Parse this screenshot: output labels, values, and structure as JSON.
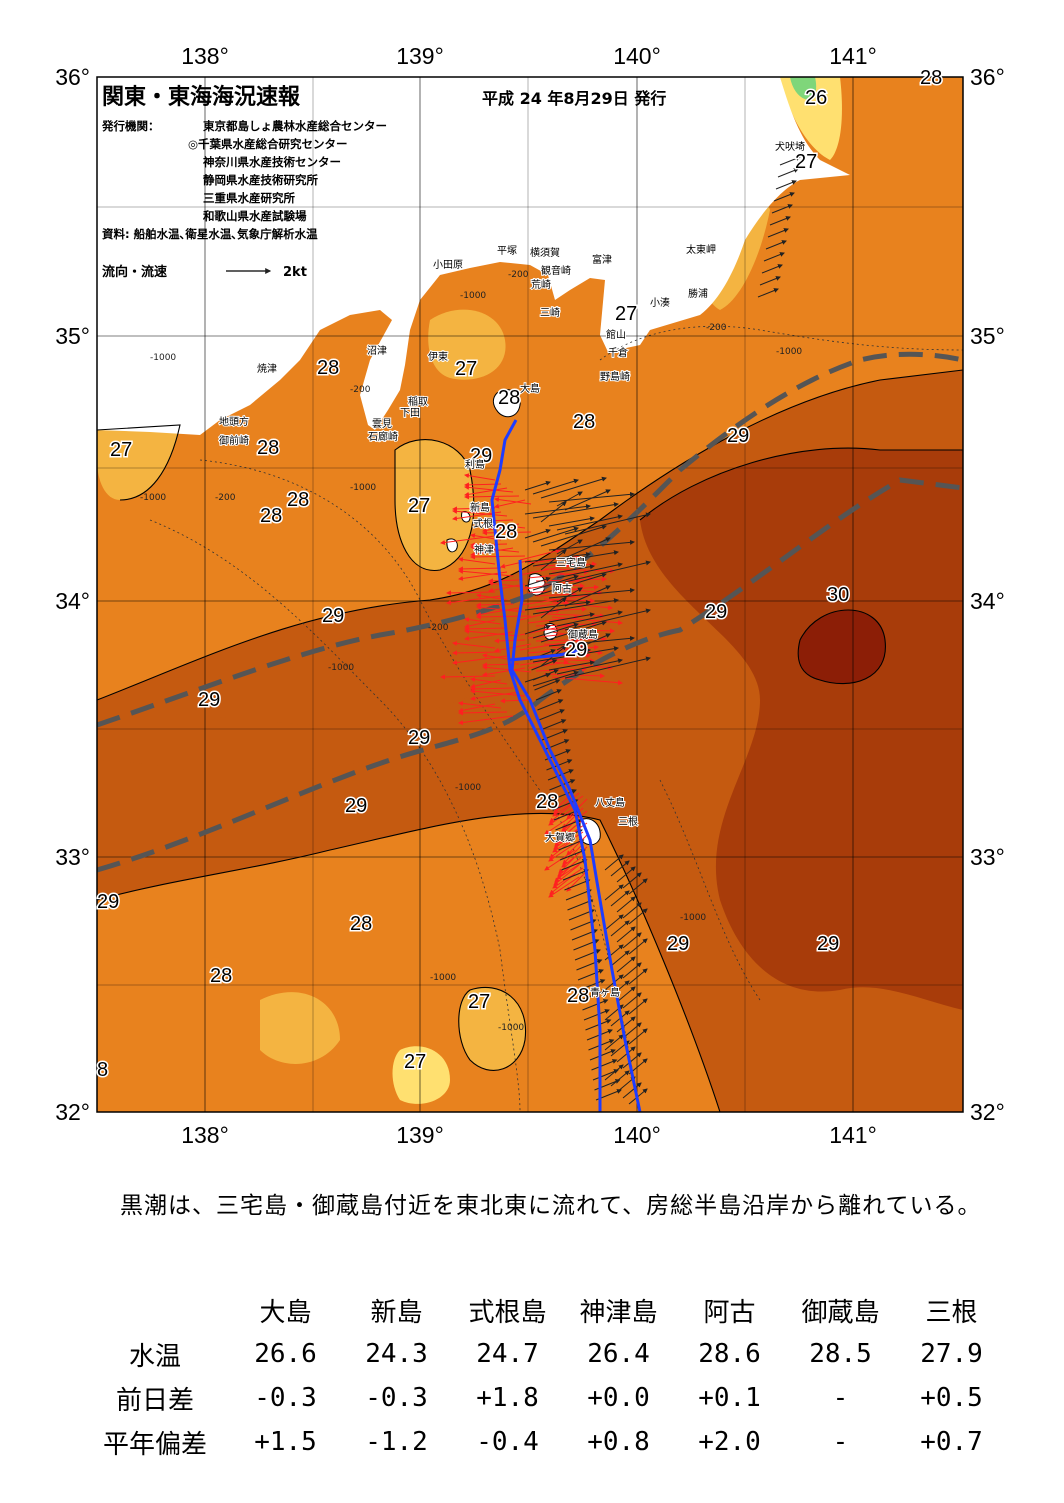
{
  "header": {
    "title": "関東・東海海況速報",
    "issue_date": "平成 24 年8月29日 発行",
    "issuer_label": "発行機関：",
    "issuers": [
      "東京都島しょ農林水産総合センター",
      "◎千葉県水産総合研究センター",
      "神奈川県水産技術センター",
      "静岡県水産技術研究所",
      "三重県水産研究所",
      "和歌山県水産試験場"
    ],
    "source": "資料: 船舶水温､衛星水温､気象庁解析水温",
    "legend_label": "流向・流速",
    "legend_scale": "2kt"
  },
  "axes": {
    "lon_labels": [
      "138°",
      "139°",
      "140°",
      "141°"
    ],
    "lat_labels": [
      "36°",
      "35°",
      "34°",
      "33°",
      "32°"
    ]
  },
  "isotherm_labels": [
    "26",
    "27",
    "27",
    "27",
    "28",
    "28",
    "28",
    "27",
    "28",
    "28",
    "28",
    "27",
    "29",
    "28",
    "29",
    "29",
    "29",
    "29",
    "29",
    "30",
    "29",
    "29",
    "29",
    "28",
    "28",
    "28",
    "27",
    "27",
    "28",
    "28",
    "29",
    "29",
    "8",
    "28",
    "27",
    "28",
    "29",
    "27"
  ],
  "depth_labels": [
    "-200",
    "-1000",
    "-200",
    "-1000",
    "-200",
    "-1000",
    "-200",
    "-1000",
    "-200",
    "-1000",
    "-1000",
    "-1000",
    "-1000",
    "-1000",
    "-1000"
  ],
  "places": [
    "犬吠埼",
    "太東岬",
    "勝浦",
    "小湊",
    "富津",
    "千倉",
    "館山",
    "野島崎",
    "平塚",
    "横須賀",
    "観音崎",
    "荒崎",
    "三崎",
    "小田原",
    "沼津",
    "伊東",
    "稲取",
    "下田",
    "焼津",
    "地頭方",
    "御前崎",
    "雲見",
    "石廊崎",
    "大島",
    "利島",
    "新島",
    "式根",
    "神津",
    "三宅島",
    "阿古",
    "御蔵島",
    "八丈島",
    "三根",
    "大賀郷",
    "青ヶ島"
  ],
  "colors": {
    "land": "#ffffff",
    "t26": "#ffe070",
    "t27": "#f4b441",
    "t28": "#e8821e",
    "t29": "#c55a10",
    "t30": "#8c1e06",
    "ship_track": "#1e3cff",
    "current_arrows": "#ff2020",
    "kuroshio_axis": "#555555"
  },
  "summary": "黒潮は、三宅島・御蔵島付近を東北東に流れて、房総半島沿岸から離れている。",
  "table": {
    "columns": [
      "大島",
      "新島",
      "式根島",
      "神津島",
      "阿古",
      "御蔵島",
      "三根"
    ],
    "rows": [
      {
        "label": "水温",
        "values": [
          "26.6",
          "24.3",
          "24.7",
          "26.4",
          "28.6",
          "28.5",
          "27.9"
        ]
      },
      {
        "label": "前日差",
        "values": [
          "-0.3",
          "-0.3",
          "+1.8",
          "+0.0",
          "+0.1",
          "-",
          "+0.5"
        ]
      },
      {
        "label": "平年偏差",
        "values": [
          "+1.5",
          "-1.2",
          "-0.4",
          "+0.8",
          "+2.0",
          "-",
          "+0.7"
        ]
      }
    ]
  }
}
